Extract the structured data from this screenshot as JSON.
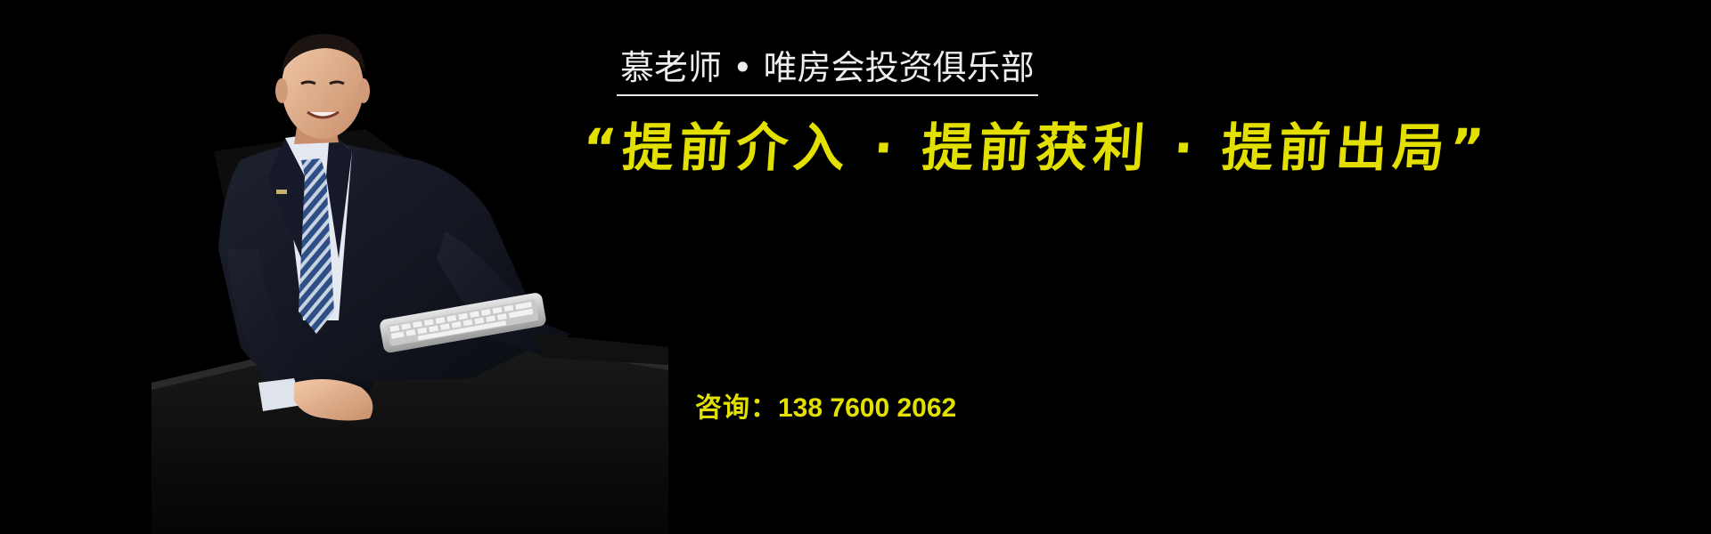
{
  "banner": {
    "subtitle": "慕老师 • 唯房会投资俱乐部",
    "slogan": "“提前介入 · 提前获利 · 提前出局”",
    "contact_label": "咨询：",
    "contact_phone": "138 7600 2062",
    "colors": {
      "background": "#000000",
      "accent": "#e3e000",
      "subtitle": "#ededed"
    },
    "photo_icon": "man-at-desk-photo"
  }
}
